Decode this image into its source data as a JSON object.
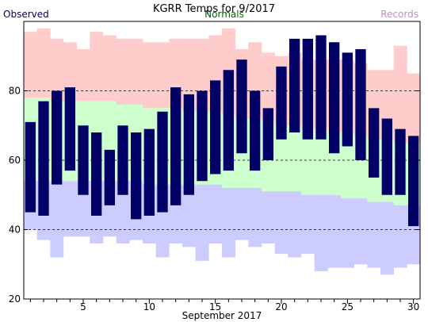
{
  "chart_data": {
    "type": "bar",
    "title": "KGRR Temps for 9/2017",
    "xlabel": "September 2017",
    "ylabel": "",
    "legend": [
      {
        "name": "Observed",
        "color": "#000066",
        "position": "top-left"
      },
      {
        "name": "Normals",
        "color": "#006600",
        "position": "top-center"
      },
      {
        "name": "Records",
        "color": "#cc88cc",
        "position": "top-right"
      }
    ],
    "ylim": [
      20,
      100
    ],
    "yticks": [
      20,
      40,
      60,
      80
    ],
    "xlim": [
      0.5,
      30.5
    ],
    "xticks": [
      5,
      10,
      15,
      20,
      25,
      30
    ],
    "gridlines_y": [
      40,
      60,
      80
    ],
    "days": [
      1,
      2,
      3,
      4,
      5,
      6,
      7,
      8,
      9,
      10,
      11,
      12,
      13,
      14,
      15,
      16,
      17,
      18,
      19,
      20,
      21,
      22,
      23,
      24,
      25,
      26,
      27,
      28,
      29,
      30
    ],
    "observed_high": [
      71,
      77,
      80,
      81,
      70,
      68,
      63,
      70,
      68,
      69,
      74,
      81,
      79,
      80,
      83,
      86,
      89,
      80,
      75,
      87,
      95,
      95,
      96,
      94,
      91,
      92,
      75,
      72,
      69,
      67
    ],
    "observed_low": [
      45,
      44,
      53,
      57,
      50,
      44,
      47,
      50,
      43,
      44,
      45,
      47,
      50,
      54,
      56,
      57,
      62,
      57,
      60,
      66,
      68,
      66,
      66,
      62,
      64,
      60,
      55,
      50,
      50,
      41
    ],
    "normal_high": [
      78,
      78,
      77,
      77,
      77,
      77,
      77,
      76,
      76,
      75,
      75,
      75,
      74,
      74,
      74,
      73,
      72,
      72,
      71,
      70,
      70,
      69,
      69,
      68,
      68,
      67,
      66,
      66,
      65,
      65
    ],
    "normal_low": [
      54,
      54,
      54,
      54,
      54,
      54,
      54,
      54,
      54,
      53,
      53,
      53,
      53,
      53,
      53,
      52,
      52,
      52,
      51,
      51,
      51,
      50,
      50,
      50,
      49,
      49,
      48,
      48,
      47,
      47
    ],
    "record_high": [
      97,
      98,
      95,
      94,
      92,
      97,
      96,
      95,
      95,
      94,
      94,
      95,
      95,
      95,
      96,
      98,
      92,
      94,
      91,
      90,
      91,
      89,
      89,
      89,
      89,
      88,
      86,
      86,
      93,
      85
    ],
    "record_low": [
      40,
      37,
      32,
      38,
      38,
      36,
      38,
      36,
      37,
      36,
      32,
      36,
      35,
      31,
      36,
      32,
      37,
      35,
      36,
      33,
      32,
      33,
      28,
      29,
      29,
      30,
      29,
      27,
      29,
      30
    ],
    "colors": {
      "record_band": "#ffcccc",
      "normal_band": "#ccffcc",
      "low_band": "#ccccff",
      "observed_bar": "#000066",
      "grid": "#000000",
      "axis": "#000000"
    }
  }
}
